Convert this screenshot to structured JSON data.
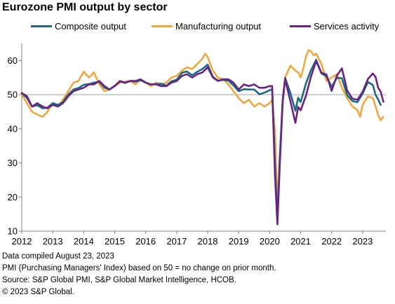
{
  "chart_data": {
    "type": "line",
    "title": "Eurozone PMI output by sector",
    "xlabel": "",
    "ylabel": "",
    "ylim": [
      10,
      65
    ],
    "xlim": [
      2012.0,
      2023.75
    ],
    "yticks": [
      10,
      20,
      30,
      40,
      50,
      60
    ],
    "xticks": [
      "2012",
      "2013",
      "2014",
      "2015",
      "2016",
      "2017",
      "2018",
      "2019",
      "2020",
      "2021",
      "2022",
      "2023"
    ],
    "reference_line": 50,
    "grid": false,
    "legend_position": "top",
    "series": [
      {
        "name": "Composite output",
        "color": "#1a6b7f",
        "points": [
          [
            2012.0,
            50.4
          ],
          [
            2012.17,
            49.0
          ],
          [
            2012.33,
            46.5
          ],
          [
            2012.5,
            46.9
          ],
          [
            2012.67,
            46.0
          ],
          [
            2012.83,
            46.2
          ],
          [
            2013.0,
            47.5
          ],
          [
            2013.17,
            47.0
          ],
          [
            2013.33,
            47.8
          ],
          [
            2013.5,
            50.0
          ],
          [
            2013.67,
            51.5
          ],
          [
            2013.83,
            51.9
          ],
          [
            2014.0,
            52.9
          ],
          [
            2014.17,
            53.1
          ],
          [
            2014.33,
            53.5
          ],
          [
            2014.5,
            53.8
          ],
          [
            2014.67,
            52.0
          ],
          [
            2014.83,
            51.5
          ],
          [
            2015.0,
            52.6
          ],
          [
            2015.17,
            53.9
          ],
          [
            2015.33,
            53.4
          ],
          [
            2015.5,
            54.0
          ],
          [
            2015.67,
            53.8
          ],
          [
            2015.83,
            54.2
          ],
          [
            2016.0,
            53.5
          ],
          [
            2016.17,
            53.0
          ],
          [
            2016.33,
            53.1
          ],
          [
            2016.5,
            53.2
          ],
          [
            2016.67,
            52.6
          ],
          [
            2016.83,
            53.9
          ],
          [
            2017.0,
            54.4
          ],
          [
            2017.17,
            56.4
          ],
          [
            2017.33,
            56.8
          ],
          [
            2017.5,
            55.7
          ],
          [
            2017.67,
            56.7
          ],
          [
            2017.83,
            57.5
          ],
          [
            2018.0,
            58.8
          ],
          [
            2018.17,
            55.2
          ],
          [
            2018.33,
            54.1
          ],
          [
            2018.5,
            54.3
          ],
          [
            2018.67,
            54.1
          ],
          [
            2018.83,
            52.7
          ],
          [
            2019.0,
            51.0
          ],
          [
            2019.17,
            51.6
          ],
          [
            2019.33,
            51.5
          ],
          [
            2019.5,
            51.5
          ],
          [
            2019.67,
            50.1
          ],
          [
            2019.83,
            50.6
          ],
          [
            2020.0,
            51.3
          ],
          [
            2020.08,
            51.6
          ],
          [
            2020.17,
            29.7
          ],
          [
            2020.25,
            13.6
          ],
          [
            2020.33,
            31.9
          ],
          [
            2020.42,
            48.5
          ],
          [
            2020.5,
            54.9
          ],
          [
            2020.67,
            50.4
          ],
          [
            2020.83,
            45.3
          ],
          [
            2020.92,
            49.1
          ],
          [
            2021.0,
            47.8
          ],
          [
            2021.17,
            53.2
          ],
          [
            2021.33,
            57.1
          ],
          [
            2021.5,
            60.2
          ],
          [
            2021.67,
            56.2
          ],
          [
            2021.83,
            55.4
          ],
          [
            2022.0,
            52.3
          ],
          [
            2022.17,
            54.9
          ],
          [
            2022.33,
            54.8
          ],
          [
            2022.5,
            49.9
          ],
          [
            2022.67,
            48.1
          ],
          [
            2022.83,
            47.8
          ],
          [
            2023.0,
            50.3
          ],
          [
            2023.17,
            53.7
          ],
          [
            2023.33,
            52.8
          ],
          [
            2023.42,
            49.9
          ],
          [
            2023.5,
            48.6
          ],
          [
            2023.58,
            47.0
          ]
        ]
      },
      {
        "name": "Manufacturing output",
        "color": "#f0a83c",
        "points": [
          [
            2012.0,
            50.0
          ],
          [
            2012.17,
            47.5
          ],
          [
            2012.33,
            45.0
          ],
          [
            2012.5,
            44.2
          ],
          [
            2012.67,
            43.5
          ],
          [
            2012.83,
            45.0
          ],
          [
            2013.0,
            47.5
          ],
          [
            2013.17,
            46.5
          ],
          [
            2013.33,
            48.5
          ],
          [
            2013.5,
            51.0
          ],
          [
            2013.67,
            53.5
          ],
          [
            2013.83,
            54.0
          ],
          [
            2014.0,
            56.7
          ],
          [
            2014.17,
            55.0
          ],
          [
            2014.33,
            56.5
          ],
          [
            2014.5,
            53.0
          ],
          [
            2014.67,
            51.0
          ],
          [
            2014.83,
            51.5
          ],
          [
            2015.0,
            52.5
          ],
          [
            2015.17,
            53.5
          ],
          [
            2015.33,
            53.8
          ],
          [
            2015.5,
            54.0
          ],
          [
            2015.67,
            53.0
          ],
          [
            2015.83,
            54.5
          ],
          [
            2016.0,
            53.5
          ],
          [
            2016.17,
            52.5
          ],
          [
            2016.33,
            53.5
          ],
          [
            2016.5,
            53.0
          ],
          [
            2016.67,
            53.5
          ],
          [
            2016.83,
            55.0
          ],
          [
            2017.0,
            55.5
          ],
          [
            2017.17,
            57.0
          ],
          [
            2017.33,
            58.0
          ],
          [
            2017.5,
            57.5
          ],
          [
            2017.67,
            59.0
          ],
          [
            2017.83,
            60.5
          ],
          [
            2017.92,
            62.0
          ],
          [
            2018.0,
            61.0
          ],
          [
            2018.17,
            57.0
          ],
          [
            2018.33,
            55.0
          ],
          [
            2018.5,
            54.5
          ],
          [
            2018.67,
            53.0
          ],
          [
            2018.83,
            51.0
          ],
          [
            2019.0,
            49.0
          ],
          [
            2019.17,
            47.5
          ],
          [
            2019.33,
            48.5
          ],
          [
            2019.5,
            46.5
          ],
          [
            2019.67,
            47.5
          ],
          [
            2019.83,
            46.5
          ],
          [
            2020.0,
            47.5
          ],
          [
            2020.08,
            48.5
          ],
          [
            2020.17,
            39.5
          ],
          [
            2020.25,
            18.0
          ],
          [
            2020.33,
            32.0
          ],
          [
            2020.42,
            47.5
          ],
          [
            2020.5,
            55.0
          ],
          [
            2020.67,
            58.5
          ],
          [
            2020.83,
            57.0
          ],
          [
            2020.92,
            56.5
          ],
          [
            2021.0,
            55.0
          ],
          [
            2021.08,
            57.5
          ],
          [
            2021.17,
            61.0
          ],
          [
            2021.25,
            63.0
          ],
          [
            2021.33,
            62.8
          ],
          [
            2021.42,
            61.5
          ],
          [
            2021.5,
            62.0
          ],
          [
            2021.67,
            59.0
          ],
          [
            2021.83,
            54.0
          ],
          [
            2022.0,
            55.0
          ],
          [
            2022.17,
            56.0
          ],
          [
            2022.33,
            52.0
          ],
          [
            2022.5,
            49.0
          ],
          [
            2022.67,
            46.5
          ],
          [
            2022.83,
            45.5
          ],
          [
            2022.92,
            43.5
          ],
          [
            2023.0,
            47.0
          ],
          [
            2023.17,
            49.5
          ],
          [
            2023.33,
            49.0
          ],
          [
            2023.42,
            46.5
          ],
          [
            2023.5,
            44.0
          ],
          [
            2023.58,
            42.5
          ],
          [
            2023.67,
            43.5
          ]
        ]
      },
      {
        "name": "Services activity",
        "color": "#6a2383",
        "points": [
          [
            2012.0,
            50.5
          ],
          [
            2012.17,
            49.5
          ],
          [
            2012.33,
            46.5
          ],
          [
            2012.5,
            47.5
          ],
          [
            2012.67,
            46.5
          ],
          [
            2012.83,
            46.0
          ],
          [
            2013.0,
            47.0
          ],
          [
            2013.17,
            46.5
          ],
          [
            2013.33,
            47.5
          ],
          [
            2013.5,
            49.5
          ],
          [
            2013.67,
            51.0
          ],
          [
            2013.83,
            51.5
          ],
          [
            2014.0,
            52.0
          ],
          [
            2014.17,
            53.0
          ],
          [
            2014.33,
            53.0
          ],
          [
            2014.5,
            54.0
          ],
          [
            2014.67,
            52.5
          ],
          [
            2014.83,
            51.5
          ],
          [
            2015.0,
            52.5
          ],
          [
            2015.17,
            54.0
          ],
          [
            2015.33,
            53.5
          ],
          [
            2015.5,
            54.0
          ],
          [
            2015.67,
            54.0
          ],
          [
            2015.83,
            54.5
          ],
          [
            2016.0,
            53.5
          ],
          [
            2016.17,
            53.0
          ],
          [
            2016.33,
            53.0
          ],
          [
            2016.5,
            52.5
          ],
          [
            2016.67,
            52.5
          ],
          [
            2016.83,
            53.5
          ],
          [
            2017.0,
            54.0
          ],
          [
            2017.17,
            55.5
          ],
          [
            2017.33,
            56.0
          ],
          [
            2017.5,
            55.0
          ],
          [
            2017.67,
            56.0
          ],
          [
            2017.83,
            56.5
          ],
          [
            2018.0,
            58.0
          ],
          [
            2018.17,
            55.0
          ],
          [
            2018.33,
            54.0
          ],
          [
            2018.5,
            54.5
          ],
          [
            2018.67,
            54.5
          ],
          [
            2018.83,
            53.5
          ],
          [
            2019.0,
            51.5
          ],
          [
            2019.17,
            53.0
          ],
          [
            2019.33,
            52.5
          ],
          [
            2019.5,
            53.0
          ],
          [
            2019.67,
            52.0
          ],
          [
            2019.83,
            52.0
          ],
          [
            2020.0,
            52.5
          ],
          [
            2020.08,
            52.5
          ],
          [
            2020.17,
            26.5
          ],
          [
            2020.25,
            12.0
          ],
          [
            2020.33,
            30.0
          ],
          [
            2020.42,
            48.0
          ],
          [
            2020.5,
            54.5
          ],
          [
            2020.67,
            48.0
          ],
          [
            2020.83,
            41.7
          ],
          [
            2020.92,
            46.4
          ],
          [
            2021.0,
            45.4
          ],
          [
            2021.17,
            49.6
          ],
          [
            2021.33,
            55.2
          ],
          [
            2021.5,
            59.8
          ],
          [
            2021.67,
            56.4
          ],
          [
            2021.83,
            55.9
          ],
          [
            2022.0,
            51.1
          ],
          [
            2022.17,
            55.6
          ],
          [
            2022.33,
            57.7
          ],
          [
            2022.5,
            51.2
          ],
          [
            2022.67,
            48.8
          ],
          [
            2022.83,
            48.5
          ],
          [
            2023.0,
            50.8
          ],
          [
            2023.17,
            54.6
          ],
          [
            2023.33,
            56.2
          ],
          [
            2023.42,
            55.1
          ],
          [
            2023.5,
            52.0
          ],
          [
            2023.58,
            50.9
          ],
          [
            2023.67,
            47.9
          ]
        ]
      }
    ]
  },
  "footnotes": [
    "Data compiled August 23, 2023",
    "PMI (Purchasing Managers' Index) based on 50 = no change on prior month.",
    "Source: S&P Global PMI, S&P Global Market Intelligence, HCOB.",
    "© 2023 S&P Global."
  ]
}
